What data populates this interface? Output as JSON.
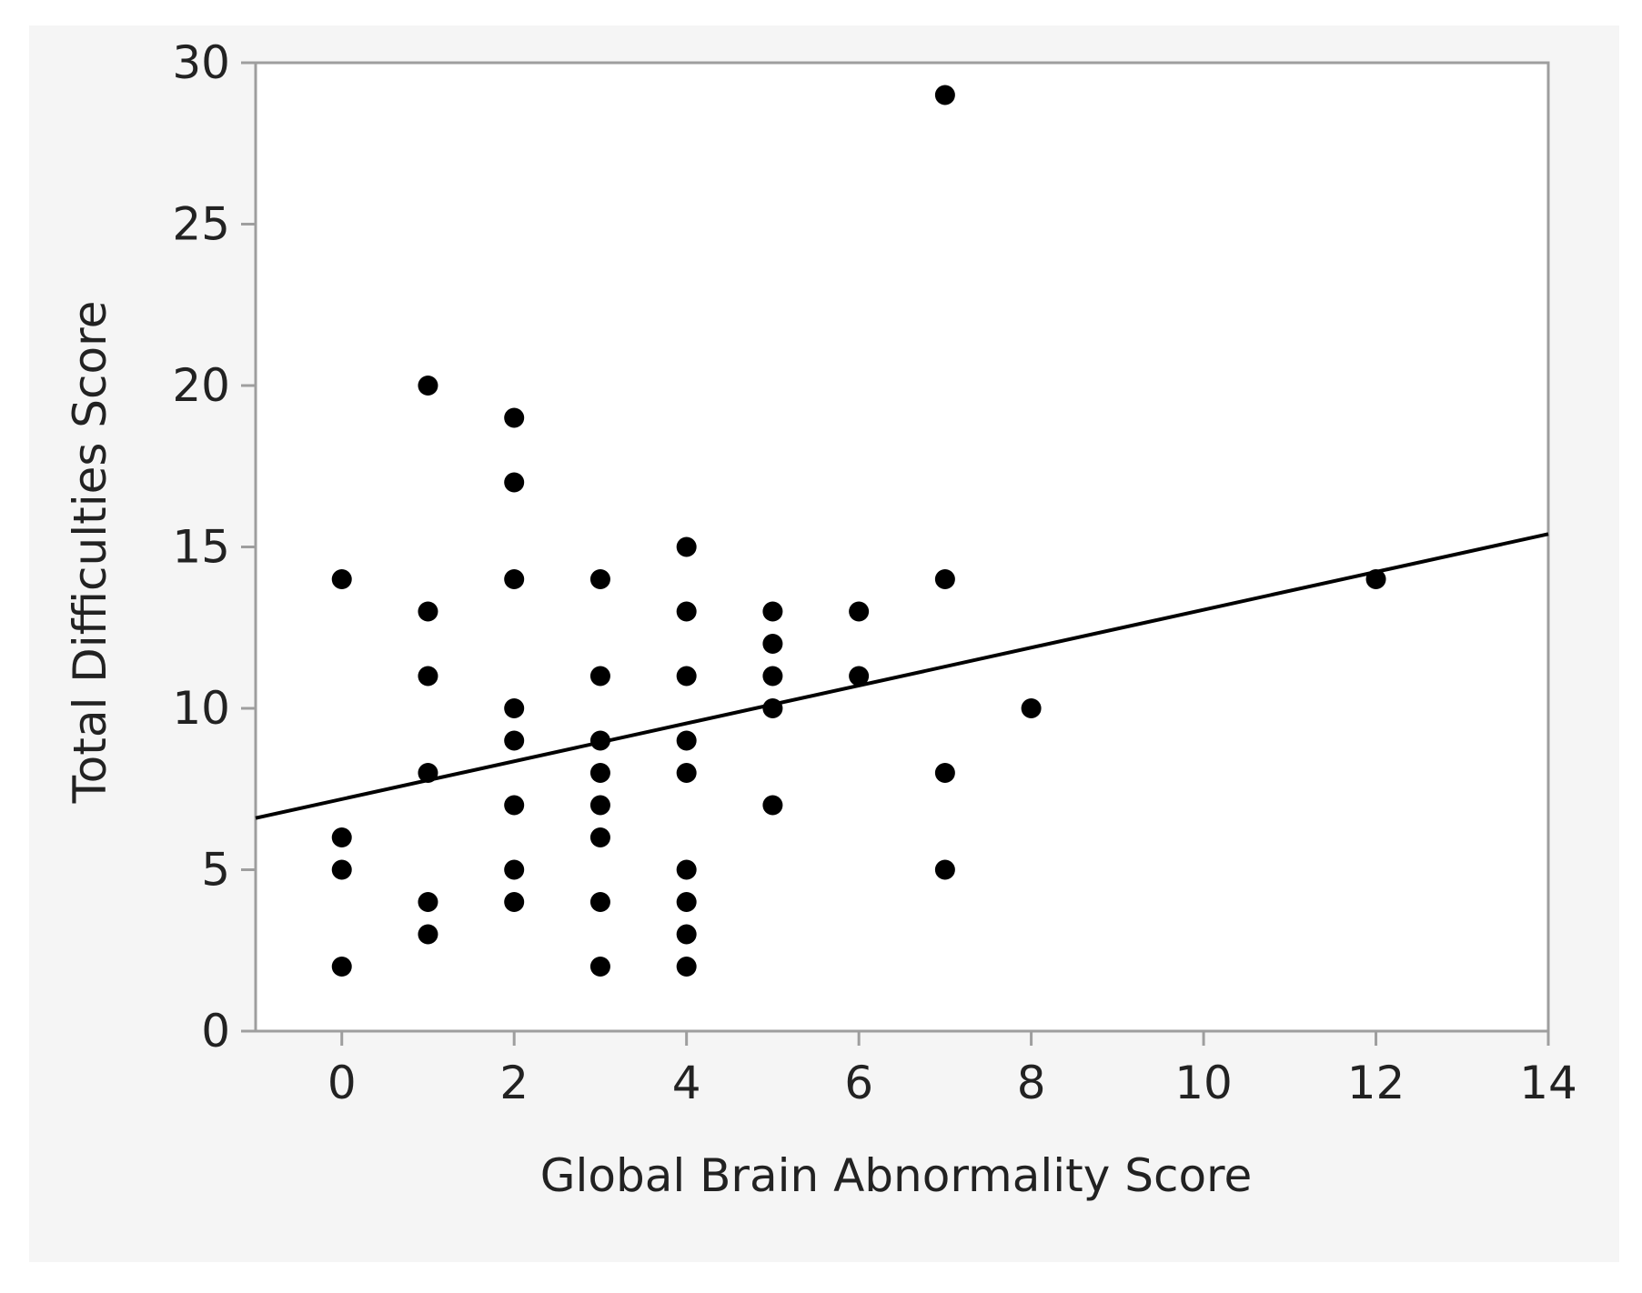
{
  "chart_data": {
    "type": "scatter",
    "title": "",
    "xlabel": "Global Brain Abnormality Score",
    "ylabel": "Total Difficulties Score",
    "xlim": [
      -1,
      14
    ],
    "ylim": [
      0,
      30
    ],
    "x_ticks": [
      0,
      2,
      4,
      6,
      8,
      10,
      12,
      14
    ],
    "y_ticks": [
      0,
      5,
      10,
      15,
      20,
      25,
      30
    ],
    "grid": false,
    "legend": "none",
    "points": [
      [
        0,
        14
      ],
      [
        0,
        6
      ],
      [
        0,
        5
      ],
      [
        0,
        2
      ],
      [
        1,
        20
      ],
      [
        1,
        13
      ],
      [
        1,
        11
      ],
      [
        1,
        8
      ],
      [
        1,
        4
      ],
      [
        1,
        3
      ],
      [
        2,
        19
      ],
      [
        2,
        17
      ],
      [
        2,
        14
      ],
      [
        2,
        10
      ],
      [
        2,
        9
      ],
      [
        2,
        7
      ],
      [
        2,
        5
      ],
      [
        2,
        4
      ],
      [
        3,
        14
      ],
      [
        3,
        11
      ],
      [
        3,
        9
      ],
      [
        3,
        8
      ],
      [
        3,
        7
      ],
      [
        3,
        6
      ],
      [
        3,
        4
      ],
      [
        3,
        2
      ],
      [
        4,
        15
      ],
      [
        4,
        13
      ],
      [
        4,
        11
      ],
      [
        4,
        9
      ],
      [
        4,
        8
      ],
      [
        4,
        5
      ],
      [
        4,
        4
      ],
      [
        4,
        3
      ],
      [
        4,
        2
      ],
      [
        5,
        13
      ],
      [
        5,
        12
      ],
      [
        5,
        11
      ],
      [
        5,
        10
      ],
      [
        5,
        7
      ],
      [
        6,
        13
      ],
      [
        6,
        11
      ],
      [
        7,
        29
      ],
      [
        7,
        14
      ],
      [
        7,
        8
      ],
      [
        7,
        5
      ],
      [
        8,
        10
      ],
      [
        12,
        14
      ]
    ],
    "regression_line": {
      "x": [
        -1,
        14
      ],
      "y": [
        6.6,
        15.4
      ]
    },
    "colors": {
      "background": "#f5f5f5",
      "plot_area": "#ffffff",
      "frame": "#9e9e9e",
      "points": "#000000",
      "line": "#000000",
      "text": "#222222"
    }
  }
}
